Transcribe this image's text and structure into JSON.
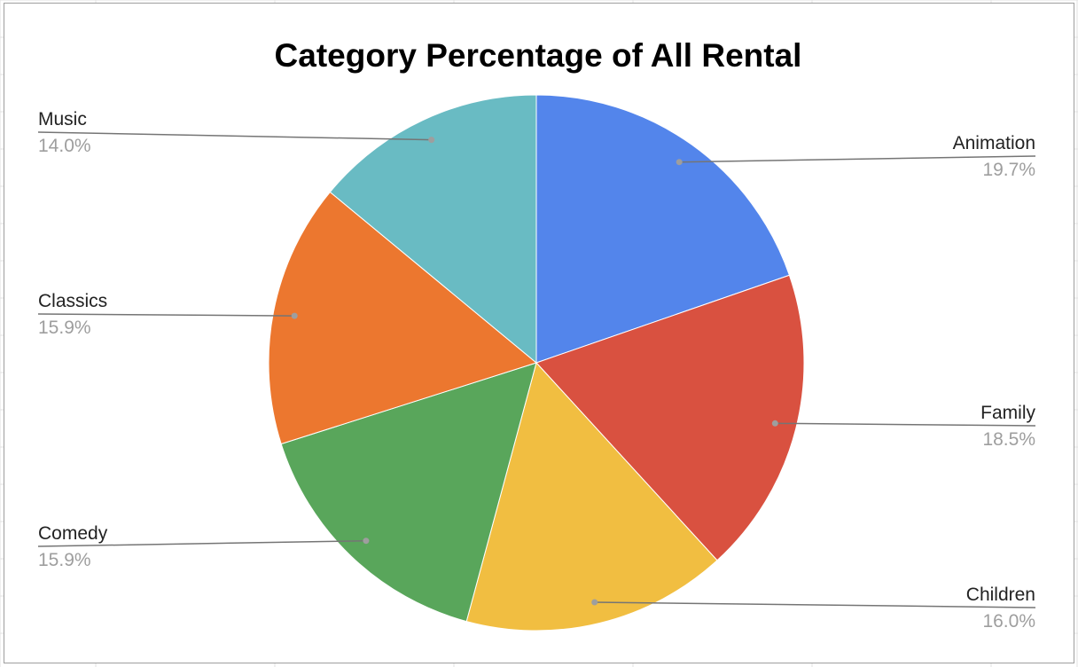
{
  "chart_data": {
    "type": "pie",
    "title": "Category Percentage of All Rental",
    "categories": [
      "Animation",
      "Family",
      "Children",
      "Comedy",
      "Classics",
      "Music"
    ],
    "values": [
      19.7,
      18.5,
      16.0,
      15.9,
      15.9,
      14.0
    ],
    "value_labels": [
      "19.7%",
      "18.5%",
      "16.0%",
      "15.9%",
      "15.9%",
      "14.0%"
    ],
    "colors": [
      "#5385eb",
      "#d95140",
      "#f1be41",
      "#59a65b",
      "#ec772f",
      "#69bbc3"
    ],
    "start_angle": "12 o'clock",
    "direction": "clockwise",
    "legend": "none",
    "labels": "outside with leader lines"
  }
}
